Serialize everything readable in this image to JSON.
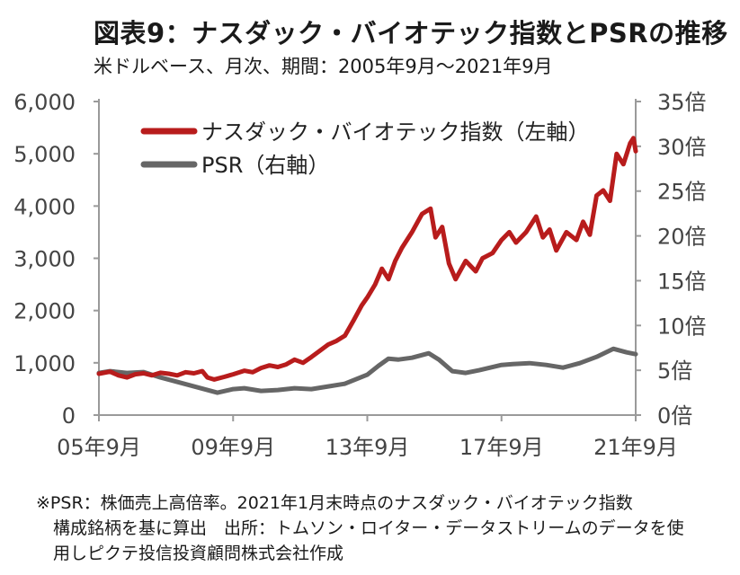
{
  "title": "図表9：ナスダック・バイオテック指数とPSRの推移",
  "subtitle": "米ドルベース、月次、期間：2005年9月～2021年9月",
  "note_lines": [
    "※PSR：株価売上高倍率。2021年1月末時点のナスダック・バイオテック指数",
    "構成銘柄を基に算出　出所：トムソン・ロイター・データストリームのデータを使",
    "用しピクテ投信投資顧問株式会社作成"
  ],
  "chart_data": {
    "type": "line",
    "x_tick_labels": [
      "05年9月",
      "09年9月",
      "13年9月",
      "17年9月",
      "21年9月"
    ],
    "x_tick_years": [
      2005.667,
      2009.667,
      2013.667,
      2017.667,
      2021.667
    ],
    "x_range": [
      2005.667,
      2021.667
    ],
    "y_left": {
      "range": [
        0,
        6000
      ],
      "ticks": [
        "0",
        "1,000",
        "2,000",
        "3,000",
        "4,000",
        "5,000",
        "6,000"
      ]
    },
    "y_right": {
      "range": [
        0,
        35
      ],
      "ticks": [
        "0倍",
        "5倍",
        "10倍",
        "15倍",
        "20倍",
        "25倍",
        "30倍",
        "35倍"
      ]
    },
    "grid": false,
    "legend_position": "top-left",
    "series": [
      {
        "name": "ナスダック・バイオテック指数（左軸）",
        "axis": "left",
        "color": "#b81c1c",
        "points": [
          [
            2005.667,
            790
          ],
          [
            2006.0,
            830
          ],
          [
            2006.25,
            760
          ],
          [
            2006.5,
            720
          ],
          [
            2006.75,
            780
          ],
          [
            2007.0,
            800
          ],
          [
            2007.25,
            760
          ],
          [
            2007.5,
            810
          ],
          [
            2007.75,
            790
          ],
          [
            2008.0,
            760
          ],
          [
            2008.25,
            820
          ],
          [
            2008.5,
            800
          ],
          [
            2008.75,
            840
          ],
          [
            2008.9,
            720
          ],
          [
            2009.1,
            680
          ],
          [
            2009.4,
            730
          ],
          [
            2009.667,
            780
          ],
          [
            2010.0,
            850
          ],
          [
            2010.25,
            820
          ],
          [
            2010.5,
            900
          ],
          [
            2010.75,
            950
          ],
          [
            2011.0,
            920
          ],
          [
            2011.25,
            970
          ],
          [
            2011.5,
            1060
          ],
          [
            2011.75,
            1000
          ],
          [
            2012.0,
            1110
          ],
          [
            2012.25,
            1230
          ],
          [
            2012.5,
            1350
          ],
          [
            2012.75,
            1420
          ],
          [
            2013.0,
            1520
          ],
          [
            2013.25,
            1800
          ],
          [
            2013.5,
            2100
          ],
          [
            2013.667,
            2250
          ],
          [
            2013.9,
            2500
          ],
          [
            2014.1,
            2800
          ],
          [
            2014.3,
            2600
          ],
          [
            2014.5,
            2950
          ],
          [
            2014.7,
            3200
          ],
          [
            2015.0,
            3500
          ],
          [
            2015.3,
            3850
          ],
          [
            2015.55,
            3950
          ],
          [
            2015.7,
            3400
          ],
          [
            2015.9,
            3600
          ],
          [
            2016.1,
            2900
          ],
          [
            2016.3,
            2600
          ],
          [
            2016.6,
            2950
          ],
          [
            2016.9,
            2750
          ],
          [
            2017.1,
            3000
          ],
          [
            2017.4,
            3100
          ],
          [
            2017.667,
            3350
          ],
          [
            2017.9,
            3500
          ],
          [
            2018.1,
            3300
          ],
          [
            2018.4,
            3500
          ],
          [
            2018.7,
            3800
          ],
          [
            2018.9,
            3400
          ],
          [
            2019.1,
            3550
          ],
          [
            2019.3,
            3150
          ],
          [
            2019.6,
            3500
          ],
          [
            2019.9,
            3350
          ],
          [
            2020.1,
            3700
          ],
          [
            2020.3,
            3450
          ],
          [
            2020.5,
            4200
          ],
          [
            2020.7,
            4300
          ],
          [
            2020.9,
            4100
          ],
          [
            2021.1,
            5000
          ],
          [
            2021.3,
            4800
          ],
          [
            2021.5,
            5200
          ],
          [
            2021.6,
            5300
          ],
          [
            2021.667,
            5050
          ]
        ]
      },
      {
        "name": "PSR（右軸）",
        "axis": "right",
        "color": "#666666",
        "points": [
          [
            2005.667,
            4.7
          ],
          [
            2006.0,
            4.9
          ],
          [
            2006.5,
            4.7
          ],
          [
            2007.0,
            4.8
          ],
          [
            2007.5,
            4.2
          ],
          [
            2008.0,
            3.7
          ],
          [
            2008.5,
            3.2
          ],
          [
            2008.9,
            2.8
          ],
          [
            2009.2,
            2.5
          ],
          [
            2009.667,
            2.9
          ],
          [
            2010.0,
            3.0
          ],
          [
            2010.5,
            2.7
          ],
          [
            2011.0,
            2.8
          ],
          [
            2011.5,
            3.0
          ],
          [
            2012.0,
            2.9
          ],
          [
            2012.5,
            3.2
          ],
          [
            2013.0,
            3.5
          ],
          [
            2013.667,
            4.5
          ],
          [
            2014.0,
            5.5
          ],
          [
            2014.3,
            6.3
          ],
          [
            2014.6,
            6.2
          ],
          [
            2015.0,
            6.4
          ],
          [
            2015.5,
            6.9
          ],
          [
            2015.8,
            6.2
          ],
          [
            2016.2,
            4.9
          ],
          [
            2016.6,
            4.7
          ],
          [
            2017.0,
            5.0
          ],
          [
            2017.667,
            5.6
          ],
          [
            2018.0,
            5.7
          ],
          [
            2018.5,
            5.8
          ],
          [
            2019.0,
            5.6
          ],
          [
            2019.5,
            5.3
          ],
          [
            2020.0,
            5.8
          ],
          [
            2020.5,
            6.5
          ],
          [
            2021.0,
            7.4
          ],
          [
            2021.4,
            7.0
          ],
          [
            2021.667,
            6.8
          ]
        ]
      }
    ]
  }
}
